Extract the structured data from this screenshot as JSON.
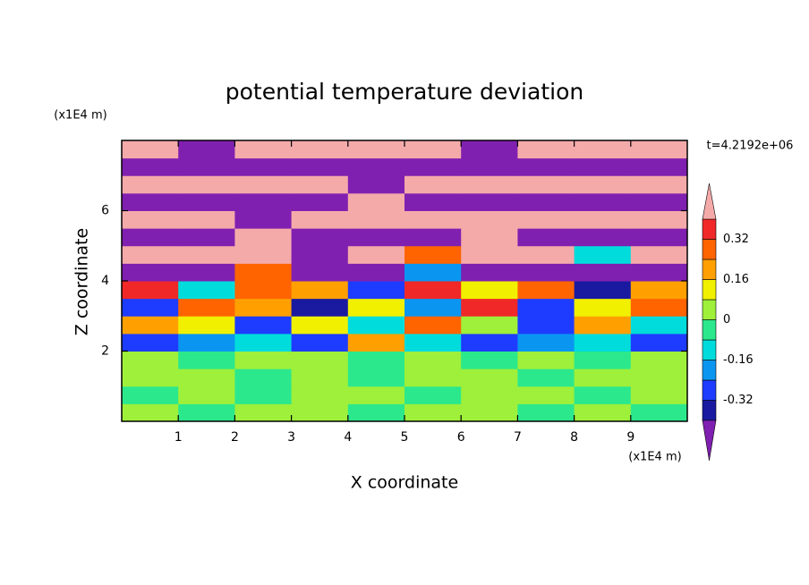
{
  "chart_data": {
    "type": "contour",
    "title": "potential temperature deviation",
    "xlabel": "X coordinate",
    "ylabel": "Z coordinate",
    "x_unit_label": "(x1E4 m)",
    "y_unit_label": "(x1E4 m)",
    "time_label": "t=4.2192e+06",
    "xlim": [
      0,
      10
    ],
    "ylim": [
      0,
      8
    ],
    "xticks": [
      1,
      2,
      3,
      4,
      5,
      6,
      7,
      8,
      9
    ],
    "yticks": [
      2,
      4,
      6
    ],
    "field": {
      "x": [
        0.5,
        1.5,
        2.5,
        3.5,
        4.5,
        5.5,
        6.5,
        7.5,
        8.5,
        9.5
      ],
      "y": [
        0.25,
        0.75,
        1.25,
        1.75,
        2.25,
        2.75,
        3.25,
        3.75,
        4.25,
        4.75,
        5.25,
        5.75,
        6.25,
        6.75,
        7.25,
        7.75
      ],
      "values": [
        [
          0.04,
          -0.04,
          0.04,
          0.04,
          -0.04,
          0.04,
          0.04,
          -0.04,
          0.04,
          -0.04
        ],
        [
          -0.04,
          0.04,
          -0.04,
          0.04,
          0.04,
          -0.04,
          0.04,
          0.04,
          -0.04,
          0.04
        ],
        [
          0.04,
          0.04,
          -0.04,
          0.04,
          -0.04,
          0.04,
          0.04,
          -0.04,
          0.04,
          0.04
        ],
        [
          0.04,
          -0.04,
          0.04,
          0.04,
          -0.04,
          0.04,
          -0.04,
          0.04,
          -0.04,
          0.04
        ],
        [
          -0.3,
          -0.2,
          -0.1,
          -0.3,
          0.2,
          -0.1,
          -0.3,
          -0.2,
          -0.1,
          -0.3
        ],
        [
          0.2,
          0.1,
          -0.25,
          0.12,
          -0.1,
          0.3,
          0.05,
          -0.25,
          0.2,
          -0.12
        ],
        [
          -0.3,
          0.3,
          0.2,
          -0.35,
          0.1,
          -0.2,
          0.35,
          -0.3,
          0.1,
          0.25
        ],
        [
          0.35,
          -0.1,
          0.3,
          0.2,
          -0.3,
          0.35,
          0.15,
          0.3,
          -0.35,
          0.2
        ],
        [
          -0.5,
          -0.5,
          0.25,
          -0.5,
          -0.5,
          -0.2,
          -0.5,
          -0.5,
          -0.5,
          -0.5
        ],
        [
          0.5,
          0.5,
          0.5,
          -0.5,
          0.5,
          0.3,
          0.5,
          0.5,
          -0.1,
          0.5
        ],
        [
          -0.5,
          -0.5,
          0.5,
          -0.5,
          -0.5,
          -0.5,
          0.5,
          -0.5,
          -0.5,
          -0.5
        ],
        [
          0.5,
          0.5,
          -0.5,
          0.5,
          0.5,
          0.5,
          0.5,
          0.5,
          0.5,
          0.5
        ],
        [
          -0.5,
          -0.5,
          -0.5,
          -0.5,
          0.5,
          -0.5,
          -0.5,
          -0.5,
          -0.5,
          -0.5
        ],
        [
          0.5,
          0.5,
          0.5,
          0.5,
          -0.5,
          0.5,
          0.5,
          0.5,
          0.5,
          0.5
        ],
        [
          -0.5,
          -0.5,
          -0.5,
          -0.5,
          -0.5,
          -0.5,
          -0.5,
          -0.5,
          -0.5,
          -0.5
        ],
        [
          0.5,
          -0.5,
          0.5,
          0.5,
          0.5,
          0.5,
          -0.5,
          0.5,
          0.5,
          0.5
        ]
      ]
    },
    "levels": [
      -0.4,
      -0.32,
      -0.24,
      -0.16,
      -0.08,
      0,
      0.08,
      0.16,
      0.24,
      0.32,
      0.4
    ],
    "colors": [
      "#8020b0",
      "#1a1aa0",
      "#1e3cff",
      "#0a96f0",
      "#00dcdc",
      "#2ce88c",
      "#9ef03a",
      "#f0f000",
      "#ffa000",
      "#ff6400",
      "#f02828",
      "#f5aaaa"
    ],
    "colorbar_ticks": [
      0.32,
      0.16,
      0,
      -0.16,
      -0.32
    ]
  }
}
